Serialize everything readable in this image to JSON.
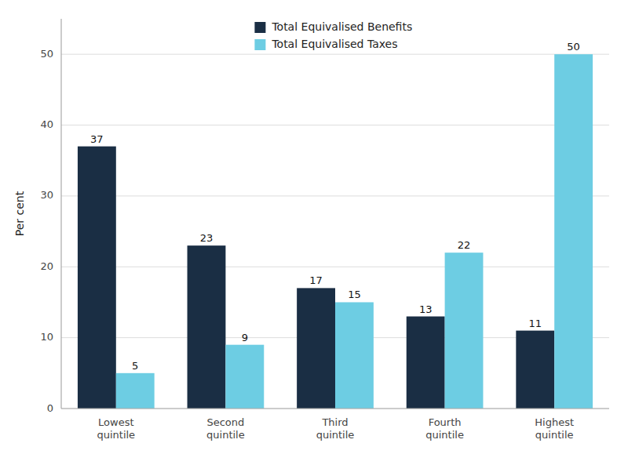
{
  "chart_data": {
    "type": "bar",
    "categories": [
      "Lowest\nquintile",
      "Second\nquintile",
      "Third\nquintile",
      "Fourth\nquintile",
      "Highest\nquintile"
    ],
    "series": [
      {
        "name": "Total Equivalised Benefits",
        "color": "#1a2e44",
        "values": [
          37,
          23,
          17,
          13,
          11
        ]
      },
      {
        "name": "Total Equivalised Taxes",
        "color": "#6dcde3",
        "values": [
          5,
          9,
          15,
          22,
          50
        ]
      }
    ],
    "ylabel": "Per cent",
    "ylim": [
      0,
      55
    ],
    "yticks": [
      0,
      10,
      20,
      30,
      40,
      50
    ],
    "grid": true,
    "legend": "top",
    "data_labels": true
  }
}
